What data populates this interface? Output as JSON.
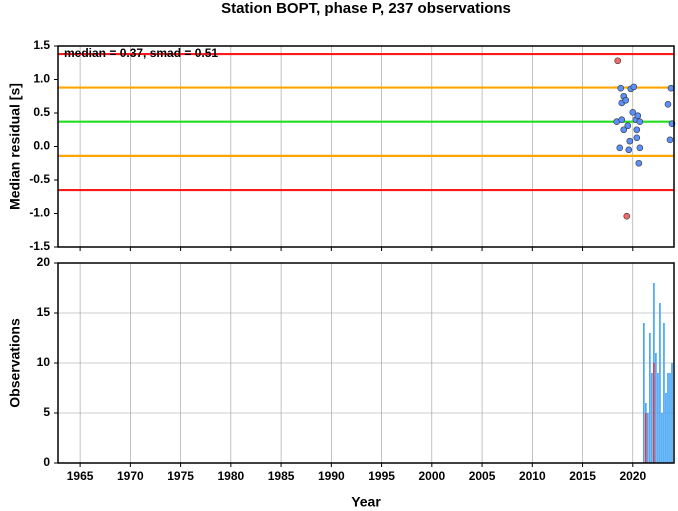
{
  "chart_data": [
    {
      "type": "scatter",
      "title": "Station BOPT, phase P, 237 observations",
      "ylabel": "Median residual [s]",
      "annotation": "median = 0.37, smad = 0.51",
      "xlim": [
        1962.8,
        2024.1
      ],
      "xticks": [
        1965,
        1970,
        1975,
        1980,
        1985,
        1990,
        1995,
        2000,
        2005,
        2010,
        2015,
        2020
      ],
      "ylim": [
        -1.5,
        1.5
      ],
      "yticks": [
        -1.5,
        {
          "value": -1,
          "label": "-1.0"
        },
        -0.5,
        {
          "value": 0,
          "label": "0.0"
        },
        0.5,
        {
          "value": 1,
          "label": "1.0"
        },
        1.5
      ],
      "grid": "x",
      "hlines": [
        {
          "value": 1.38,
          "color": "#ff1a1a"
        },
        {
          "value": 0.88,
          "color": "#ffa500"
        },
        {
          "value": 0.37,
          "color": "#22dd22"
        },
        {
          "value": -0.14,
          "color": "#ffa500"
        },
        {
          "value": -0.65,
          "color": "#ff1a1a"
        }
      ],
      "series": [
        {
          "color": "#5b8ff9",
          "x": [
            2018.8,
            2018.4,
            2018.9,
            2019.1,
            2018.9,
            2019.3,
            2019.5,
            2019.1,
            2019.8,
            2019.7,
            2020.1,
            2020.0,
            2020.3,
            2020.4,
            2020.5,
            2020.7,
            2020.4,
            2020.7,
            2020.6,
            2019.6,
            2018.7,
            2023.8,
            2023.5,
            2023.9,
            2023.7
          ],
          "values": [
            0.87,
            0.37,
            0.4,
            0.75,
            0.65,
            0.69,
            0.31,
            0.25,
            0.86,
            0.08,
            0.89,
            0.51,
            0.4,
            0.25,
            0.46,
            0.37,
            0.13,
            -0.02,
            -0.25,
            -0.05,
            -0.02,
            0.87,
            0.63,
            0.34,
            0.1
          ]
        },
        {
          "color": "#f06a6a",
          "x": [
            2018.5,
            2019.4
          ],
          "values": [
            1.28,
            -1.04
          ]
        }
      ]
    },
    {
      "type": "bar",
      "ylabel": "Observations",
      "xlabel": "Year",
      "xlim": [
        1962.8,
        2024.1
      ],
      "xticks": [
        1965,
        1970,
        1975,
        1980,
        1985,
        1990,
        1995,
        2000,
        2005,
        2010,
        2015,
        2020
      ],
      "ylim": [
        0,
        20
      ],
      "yticks": [
        0,
        5,
        10,
        15,
        20
      ],
      "grid": "both",
      "series": [
        {
          "color": "#3fa2f5",
          "x": [
            2021.1,
            2021.3,
            2021.5,
            2021.7,
            2021.9,
            2022.1,
            2022.3,
            2022.5,
            2022.7,
            2022.9,
            2023.1,
            2023.3,
            2023.5,
            2023.7,
            2023.9
          ],
          "values": [
            14,
            6,
            5,
            13,
            9,
            18,
            11,
            9,
            16,
            5,
            14,
            7,
            9,
            9,
            10
          ]
        },
        {
          "color": "#e8323c",
          "x": [
            2021.3,
            2022.1
          ],
          "values": [
            5,
            10
          ]
        }
      ]
    }
  ]
}
